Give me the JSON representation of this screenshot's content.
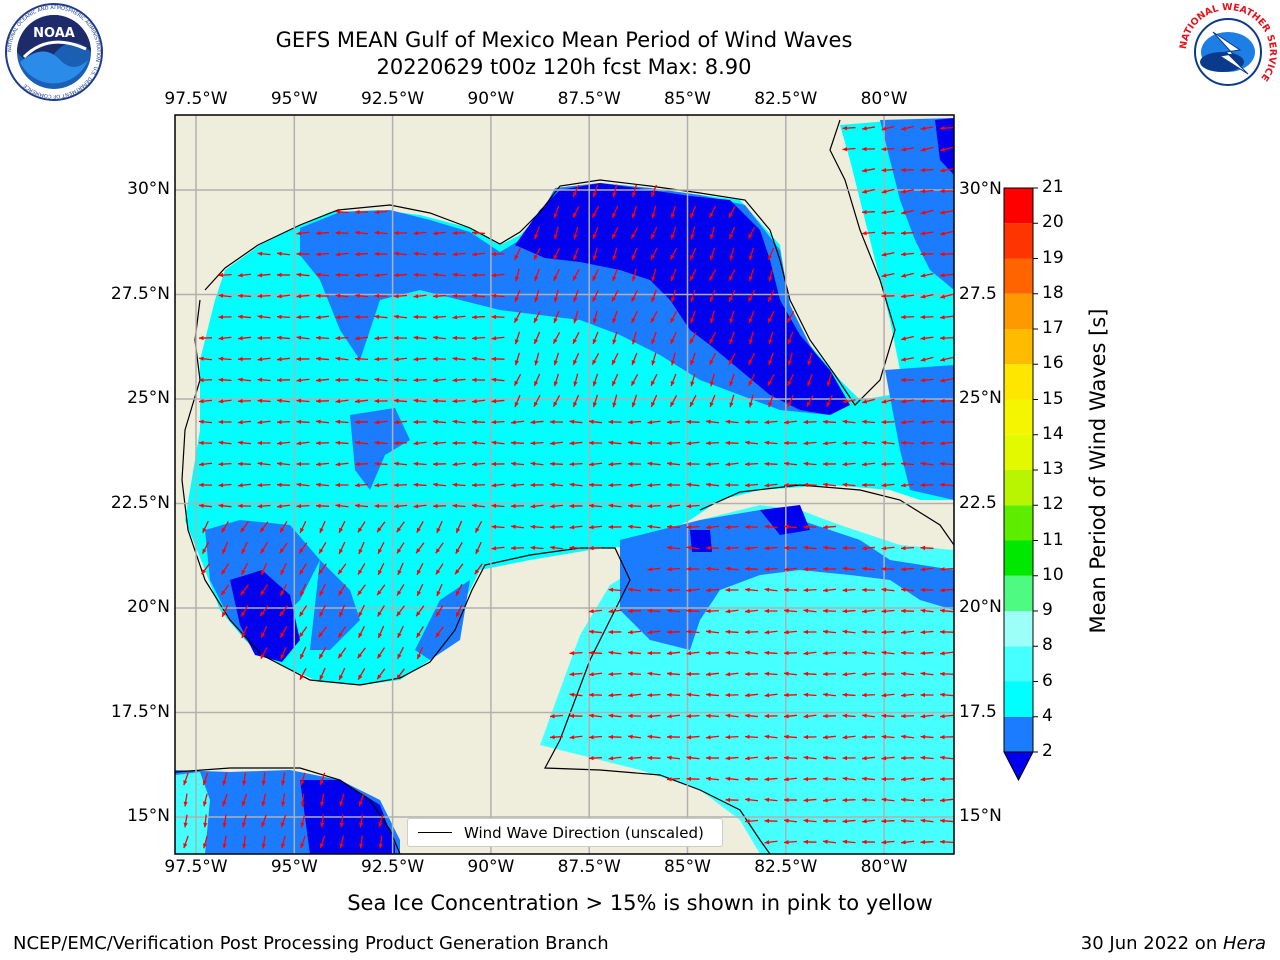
{
  "header": {
    "title_line1": "GEFS MEAN Gulf of Mexico Mean Period of Wind Waves",
    "title_line2": "20220629 t00z 120h fcst   Max: 8.90"
  },
  "logos": {
    "noaa_text": "NOAA",
    "noaa_ring": "NATIONAL OCEANIC AND ATMOSPHERIC ADMINISTRATION · U.S. DEPARTMENT OF COMMERCE",
    "nws_ring": "NATIONAL WEATHER SERVICE"
  },
  "map": {
    "lon_labels": [
      "97.5°W",
      "95°W",
      "92.5°W",
      "90°W",
      "87.5°W",
      "85°W",
      "82.5°W",
      "80°W"
    ],
    "lat_labels_left": [
      "30°N",
      "27.5°N",
      "25°N",
      "22.5°N",
      "20°N",
      "17.5°N",
      "15°N"
    ],
    "lat_labels_right": [
      "30°N",
      "27.5",
      "25°N",
      "22.5",
      "20°N",
      "17.5",
      "15°N"
    ],
    "legend_label": "Wind Wave Direction (unscaled)",
    "colors": {
      "land": "#efeddb",
      "coast": "#000000",
      "grid": "#b0b0b0",
      "arrow": "#ff0000"
    }
  },
  "colorbar": {
    "label": "Mean Period of Wind Waves [s]",
    "ticks": [
      "2",
      "4",
      "6",
      "8",
      "9",
      "10",
      "11",
      "12",
      "13",
      "14",
      "15",
      "16",
      "17",
      "18",
      "19",
      "20",
      "21"
    ],
    "colors": [
      "#0000ee",
      "#1c7cff",
      "#00ffff",
      "#46ffff",
      "#9cfff8",
      "#4ffa82",
      "#00e800",
      "#5ced00",
      "#b9f500",
      "#e2f900",
      "#f5f500",
      "#ffe600",
      "#ffbb00",
      "#ff9900",
      "#ff6400",
      "#ff3500",
      "#ff0000"
    ],
    "extend_color": "#0000ee"
  },
  "captions": {
    "sea_ice": "Sea Ice Concentration > 15% is shown in pink to yellow",
    "credit": "NCEP/EMC/Verification Post Processing Product Generation Branch",
    "date": "30 Jun 2022 on ",
    "machine": "Hera"
  }
}
